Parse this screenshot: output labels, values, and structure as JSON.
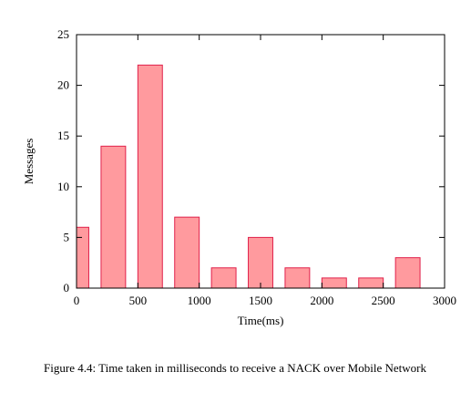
{
  "chart_data": {
    "type": "bar",
    "xlabel": "Time(ms)",
    "ylabel": "Messages",
    "xlim": [
      0,
      3000
    ],
    "ylim": [
      0,
      25
    ],
    "x_ticks": [
      0,
      500,
      1000,
      1500,
      2000,
      2500,
      3000
    ],
    "y_ticks": [
      0,
      5,
      10,
      15,
      20,
      25
    ],
    "bar_width": 200,
    "x": [
      0,
      300,
      600,
      900,
      1200,
      1500,
      1800,
      2100,
      2400,
      2700
    ],
    "values": [
      6,
      14,
      22,
      7,
      2,
      5,
      2,
      1,
      1,
      3
    ],
    "grid": false,
    "bar_fill": "#ff9a9e",
    "bar_stroke": "#e0204a"
  },
  "caption": "Figure 4.4: Time taken in milliseconds to receive a NACK over Mobile Network"
}
